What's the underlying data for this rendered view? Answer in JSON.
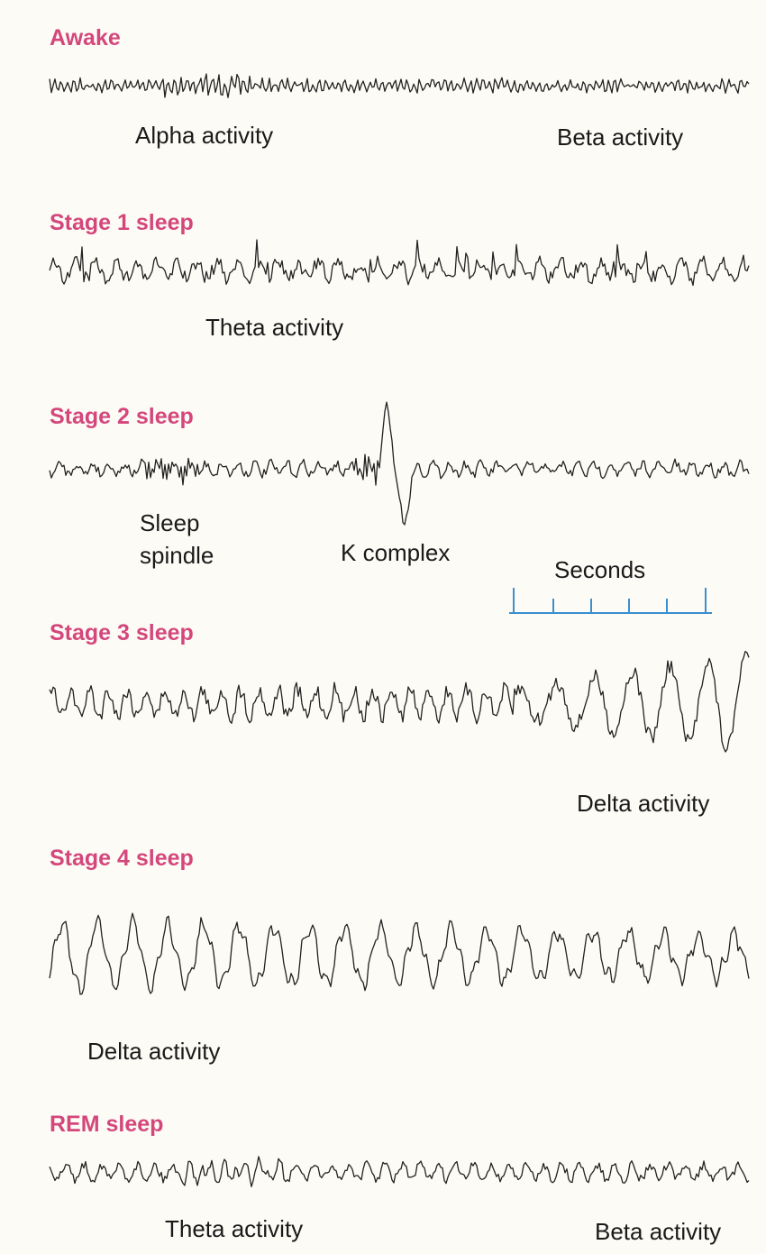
{
  "stages": [
    {
      "title": "Awake",
      "labels": [
        "Alpha activity",
        "Beta activity"
      ]
    },
    {
      "title": "Stage 1 sleep",
      "labels": [
        "Theta activity"
      ]
    },
    {
      "title": "Stage 2 sleep",
      "labels": [
        "Sleep spindle",
        "K complex"
      ]
    },
    {
      "title": "Stage 3 sleep",
      "labels": [
        "Delta activity"
      ]
    },
    {
      "title": "Stage 4 sleep",
      "labels": [
        "Delta activity"
      ]
    },
    {
      "title": "REM sleep",
      "labels": [
        "Theta activity",
        "Beta activity"
      ]
    }
  ],
  "scale": {
    "label": "Seconds"
  }
}
